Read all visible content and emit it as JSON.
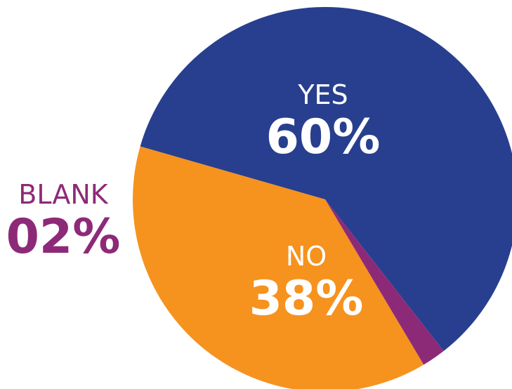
{
  "chart_data": {
    "type": "pie",
    "title": "",
    "categories": [
      "YES",
      "NO",
      "BLANK"
    ],
    "values": [
      60,
      38,
      2
    ],
    "percent_labels": [
      "60%",
      "38%",
      "02%"
    ],
    "colors": [
      "#273F8E",
      "#F6921E",
      "#8D2A78"
    ],
    "label_colors": [
      "#ffffff",
      "#ffffff",
      "#8D2A78"
    ]
  }
}
